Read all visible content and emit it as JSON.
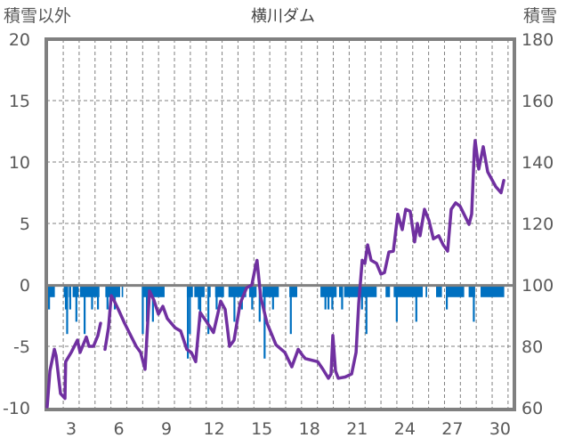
{
  "chart_data": {
    "type": "bar+line",
    "title": "横川ダム",
    "ylabel_left": "積雪以外",
    "ylabel_right": "積雪",
    "ylim_left": [
      -10,
      20
    ],
    "ylim_right": [
      60,
      180
    ],
    "yticks_left": [
      "20",
      "15",
      "10",
      "5",
      "0",
      "-5",
      "-10"
    ],
    "yticks_right": [
      "180",
      "160",
      "140",
      "120",
      "100",
      "80",
      "60"
    ],
    "xlim_days": [
      1.43,
      30.9
    ],
    "xticks": [
      "3",
      "6",
      "9",
      "12",
      "15",
      "18",
      "21",
      "24",
      "27",
      "30"
    ],
    "grid": true,
    "colors": {
      "bars": "#0070C0",
      "line": "#7030A0",
      "axis": "#808080",
      "grid": "#808080",
      "text": "#595959"
    },
    "bar_series": {
      "name": "積雪以外",
      "axis": "left",
      "runs": [
        [
          1.54,
          1.97,
          -1
        ],
        [
          2.53,
          2.81,
          -1
        ],
        [
          2.85,
          3.0,
          -1
        ],
        [
          3.09,
          3.47,
          -1
        ],
        [
          3.56,
          4.78,
          -1
        ],
        [
          5.15,
          6.08,
          -1
        ],
        [
          6.18,
          6.27,
          -1
        ],
        [
          7.45,
          8.88,
          -1
        ],
        [
          10.28,
          10.66,
          -1
        ],
        [
          10.75,
          11.4,
          -1
        ],
        [
          11.59,
          11.78,
          -1
        ],
        [
          12.06,
          12.62,
          -1
        ],
        [
          12.9,
          14.02,
          -1
        ],
        [
          14.2,
          14.67,
          -1
        ],
        [
          15.04,
          16.07,
          -1
        ],
        [
          16.73,
          17.23,
          -1
        ],
        [
          18.69,
          19.71,
          -1
        ],
        [
          19.86,
          20.09,
          -1
        ],
        [
          20.18,
          22.23,
          -1
        ],
        [
          22.79,
          23.07,
          -1
        ],
        [
          23.3,
          25.13,
          -1
        ],
        [
          25.31,
          25.41,
          -1
        ],
        [
          25.97,
          26.34,
          -1
        ],
        [
          26.62,
          27.74,
          -1
        ],
        [
          28.02,
          28.43,
          -1
        ],
        [
          28.77,
          30.26,
          -1
        ]
      ],
      "spikes": [
        [
          1.6,
          -2
        ],
        [
          2.66,
          -2
        ],
        [
          2.74,
          -4
        ],
        [
          2.93,
          -2
        ],
        [
          3.32,
          -3
        ],
        [
          3.84,
          -4
        ],
        [
          4.31,
          -2
        ],
        [
          4.68,
          -2
        ],
        [
          5.28,
          -2
        ],
        [
          5.74,
          -2
        ],
        [
          7.5,
          -4
        ],
        [
          7.76,
          -3
        ],
        [
          7.89,
          -2
        ],
        [
          8.14,
          -3
        ],
        [
          10.34,
          -6
        ],
        [
          10.47,
          -4
        ],
        [
          11.03,
          -2
        ],
        [
          11.12,
          -3
        ],
        [
          11.63,
          -4
        ],
        [
          12.15,
          -2
        ],
        [
          13.27,
          -3
        ],
        [
          13.74,
          -2
        ],
        [
          14.39,
          -2
        ],
        [
          14.86,
          -3
        ],
        [
          15.17,
          -6
        ],
        [
          15.7,
          -2
        ],
        [
          16.82,
          -4
        ],
        [
          19.0,
          -2
        ],
        [
          19.19,
          -2
        ],
        [
          19.43,
          -2
        ],
        [
          20.05,
          -2
        ],
        [
          21.3,
          -2
        ],
        [
          21.58,
          -4
        ],
        [
          23.49,
          -3
        ],
        [
          24.72,
          -3
        ],
        [
          26.64,
          -2
        ],
        [
          28.34,
          -3
        ]
      ]
    },
    "line_series": {
      "name": "積雪",
      "axis": "right",
      "points": [
        [
          1.49,
          60.3
        ],
        [
          1.66,
          72
        ],
        [
          1.94,
          79
        ],
        [
          2.05,
          77
        ],
        [
          2.33,
          64.6
        ],
        [
          2.61,
          63
        ],
        [
          2.65,
          75
        ],
        [
          3.0,
          78
        ],
        [
          3.39,
          82
        ],
        [
          3.56,
          78
        ],
        [
          3.95,
          83
        ],
        [
          4.12,
          80
        ],
        [
          4.4,
          80
        ],
        [
          4.68,
          83.5
        ],
        [
          4.85,
          87.5
        ],
        null,
        [
          5.13,
          79
        ],
        [
          5.35,
          86
        ],
        [
          5.52,
          96.5
        ],
        [
          5.69,
          95
        ],
        [
          5.97,
          92
        ],
        [
          6.36,
          87.5
        ],
        [
          6.75,
          83.5
        ],
        [
          7.09,
          80
        ],
        [
          7.37,
          78
        ],
        [
          7.65,
          72.5
        ],
        [
          7.93,
          98
        ],
        [
          8.21,
          95
        ],
        [
          8.49,
          90.5
        ],
        [
          8.77,
          93
        ],
        [
          9.05,
          89
        ],
        [
          9.55,
          86
        ],
        [
          9.89,
          85
        ],
        [
          10.28,
          79
        ],
        [
          10.56,
          78
        ],
        [
          10.84,
          75
        ],
        [
          11.12,
          91
        ],
        [
          11.52,
          88
        ],
        [
          11.96,
          84.5
        ],
        [
          12.41,
          94.7
        ],
        [
          12.69,
          92
        ],
        [
          12.97,
          80
        ],
        [
          13.25,
          82
        ],
        [
          13.64,
          94
        ],
        [
          14.04,
          99
        ],
        [
          14.37,
          100
        ],
        [
          14.6,
          106
        ],
        [
          14.7,
          108
        ],
        [
          14.93,
          96
        ],
        [
          15.33,
          87.5
        ],
        [
          15.89,
          80.5
        ],
        [
          16.45,
          78
        ],
        [
          16.89,
          73.3
        ],
        [
          17.29,
          79
        ],
        [
          17.57,
          77
        ],
        [
          17.74,
          76
        ],
        [
          18.52,
          75
        ],
        [
          18.85,
          72.5
        ],
        [
          19.19,
          69.6
        ],
        [
          19.36,
          71
        ],
        [
          19.47,
          83.5
        ],
        [
          19.64,
          72
        ],
        [
          19.81,
          69.6
        ],
        [
          20.25,
          70
        ],
        [
          20.65,
          71
        ],
        [
          20.93,
          78
        ],
        [
          21.1,
          94
        ],
        [
          21.32,
          108
        ],
        [
          21.49,
          107
        ],
        [
          21.66,
          113
        ],
        [
          21.88,
          108
        ],
        [
          22.22,
          107
        ],
        [
          22.5,
          103.5
        ],
        [
          22.72,
          104
        ],
        [
          23.0,
          110.7
        ],
        [
          23.28,
          111
        ],
        [
          23.56,
          123
        ],
        [
          23.84,
          118
        ],
        [
          24.06,
          124.6
        ],
        [
          24.34,
          124
        ],
        [
          24.62,
          114
        ],
        [
          24.79,
          120
        ],
        [
          24.96,
          116
        ],
        [
          25.24,
          124.6
        ],
        [
          25.52,
          121
        ],
        [
          25.8,
          115
        ],
        [
          26.14,
          116
        ],
        [
          26.42,
          113
        ],
        [
          26.7,
          111
        ],
        [
          26.92,
          124.6
        ],
        [
          27.2,
          126.7
        ],
        [
          27.48,
          125.6
        ],
        [
          28.04,
          119.7
        ],
        [
          28.21,
          123
        ],
        [
          28.38,
          144
        ],
        [
          28.43,
          147
        ],
        [
          28.66,
          137.7
        ],
        [
          28.94,
          145
        ],
        [
          29.22,
          136.8
        ],
        [
          29.72,
          132
        ],
        [
          30.06,
          130
        ],
        [
          30.23,
          134
        ]
      ]
    }
  }
}
